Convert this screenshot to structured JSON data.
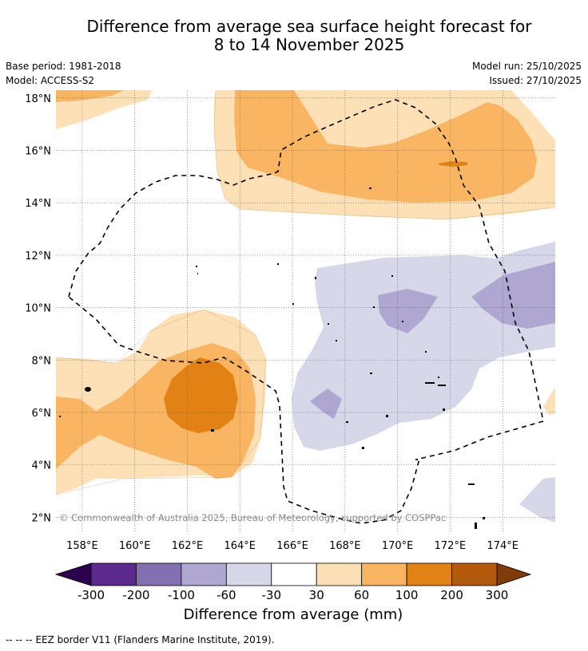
{
  "title": {
    "line1": "Difference from average sea surface height forecast for",
    "line2": "8 to 14 November 2025"
  },
  "meta": {
    "base_period": "Base period: 1981-2018",
    "model": "Model: ACCESS-S2",
    "model_run": "Model run: 25/10/2025",
    "issued": "Issued: 27/10/2025"
  },
  "map": {
    "lon_labels": [
      "158°E",
      "160°E",
      "162°E",
      "164°E",
      "166°E",
      "168°E",
      "170°E",
      "172°E",
      "174°E"
    ],
    "lon_values": [
      158,
      160,
      162,
      164,
      166,
      168,
      170,
      172,
      174
    ],
    "lat_labels": [
      "18°N",
      "16°N",
      "14°N",
      "12°N",
      "10°N",
      "8°N",
      "6°N",
      "4°N",
      "2°N"
    ],
    "lat_values": [
      18,
      16,
      14,
      12,
      10,
      8,
      6,
      4,
      2
    ],
    "lon_range": [
      157,
      176
    ],
    "lat_range": [
      1.4,
      18.3
    ],
    "copyright": "© Commonwealth of Australia 2025, Bureau of Meteorology, supported by COSPPac"
  },
  "colorbar": {
    "ticks": [
      "-300",
      "-200",
      "-100",
      "-60",
      "-30",
      "30",
      "60",
      "100",
      "200",
      "300"
    ],
    "colors": [
      "#5b2a8c",
      "#8370b0",
      "#afa7d1",
      "#d7d7ea",
      "#ffffff",
      "#fde0b5",
      "#f9b562",
      "#e38214",
      "#b35a0c"
    ],
    "low_extend_color": "#2d004b",
    "high_extend_color": "#7f3b08",
    "label": "Difference from average (mm)"
  },
  "legend": {
    "eez_symbol": "--  --  --",
    "eez_text": "EEZ border V11 (Flanders Marine Institute, 2019)."
  }
}
